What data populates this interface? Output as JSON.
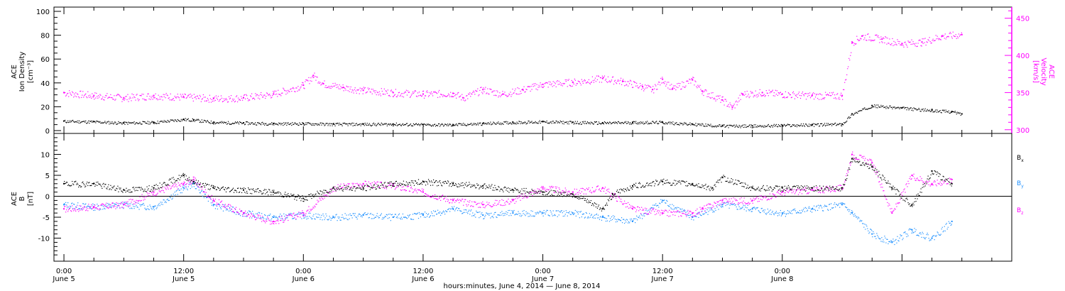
{
  "colors": {
    "axis": "#000000",
    "density": "#000000",
    "velocity": "#ff00ff",
    "bx": "#000000",
    "by": "#1e90ff",
    "bz": "#ff00ff"
  },
  "chart_data": [
    {
      "type": "scatter",
      "panel": "top",
      "ylabel_left": [
        "ACE",
        "Ion Density",
        "[cm⁻³]"
      ],
      "ylabel_right": [
        "ACE",
        "Velocity",
        "[km/s]"
      ],
      "ylim_left": [
        0,
        100
      ],
      "yticks_left": [
        0,
        20,
        40,
        60,
        80,
        100
      ],
      "ylim_right": [
        295,
        465
      ],
      "yticks_right": [
        300,
        350,
        400,
        450
      ],
      "xlim_hours": [
        -1,
        95
      ],
      "series": [
        {
          "axis": "left",
          "color_key": "density",
          "points": [
            [
              0,
              8
            ],
            [
              3,
              7.5
            ],
            [
              6,
              6.5
            ],
            [
              9,
              7
            ],
            [
              12,
              9.5
            ],
            [
              13,
              9
            ],
            [
              15,
              7
            ],
            [
              18,
              6.5
            ],
            [
              21,
              6
            ],
            [
              24,
              6
            ],
            [
              27,
              5.5
            ],
            [
              30,
              5.5
            ],
            [
              33,
              5.5
            ],
            [
              36,
              5
            ],
            [
              39,
              5
            ],
            [
              42,
              6
            ],
            [
              45,
              7
            ],
            [
              48,
              7.5
            ],
            [
              51,
              7
            ],
            [
              54,
              6.5
            ],
            [
              57,
              7
            ],
            [
              60,
              7
            ],
            [
              63,
              5.5
            ],
            [
              66,
              4
            ],
            [
              69,
              4
            ],
            [
              72,
              4.5
            ],
            [
              75,
              5
            ],
            [
              78,
              5.5
            ],
            [
              79,
              14
            ],
            [
              81,
              21
            ],
            [
              84,
              19
            ],
            [
              87,
              17
            ],
            [
              89,
              16
            ],
            [
              90,
              14
            ]
          ]
        },
        {
          "axis": "right",
          "color_key": "velocity",
          "points": [
            [
              0,
              350
            ],
            [
              3,
              346
            ],
            [
              6,
              343
            ],
            [
              9,
              346
            ],
            [
              12,
              344
            ],
            [
              15,
              342
            ],
            [
              18,
              343
            ],
            [
              21,
              348
            ],
            [
              24,
              360
            ],
            [
              25,
              373
            ],
            [
              26,
              362
            ],
            [
              28,
              357
            ],
            [
              30,
              353
            ],
            [
              33,
              350
            ],
            [
              36,
              348
            ],
            [
              39,
              349
            ],
            [
              40,
              343
            ],
            [
              42,
              354
            ],
            [
              44,
              348
            ],
            [
              46,
              354
            ],
            [
              48,
              361
            ],
            [
              51,
              364
            ],
            [
              54,
              369
            ],
            [
              56,
              365
            ],
            [
              58,
              358
            ],
            [
              59,
              354
            ],
            [
              60,
              368
            ],
            [
              61,
              355
            ],
            [
              63,
              367
            ],
            [
              64,
              352
            ],
            [
              66,
              340
            ],
            [
              67,
              330
            ],
            [
              68,
              348
            ],
            [
              70,
              350
            ],
            [
              72,
              348
            ],
            [
              75,
              346
            ],
            [
              78,
              346
            ],
            [
              79,
              418
            ],
            [
              80,
              426
            ],
            [
              82,
              422
            ],
            [
              84,
              416
            ],
            [
              86,
              418
            ],
            [
              88,
              426
            ],
            [
              90,
              428
            ]
          ]
        }
      ]
    },
    {
      "type": "scatter",
      "panel": "bottom",
      "ylabel_left": [
        "ACE",
        "B",
        "[nT]"
      ],
      "ylim": [
        -15.5,
        15
      ],
      "yticks": [
        -10,
        -5,
        0,
        5,
        10
      ],
      "xlim_hours": [
        -1,
        95
      ],
      "legend_position": "right",
      "series": [
        {
          "name": "Bx",
          "color_key": "bx",
          "points": [
            [
              0,
              3
            ],
            [
              3,
              3
            ],
            [
              6,
              1.5
            ],
            [
              9,
              2
            ],
            [
              12,
              5
            ],
            [
              13,
              3.5
            ],
            [
              15,
              2
            ],
            [
              18,
              1.5
            ],
            [
              21,
              1
            ],
            [
              24,
              -0.5
            ],
            [
              27,
              2
            ],
            [
              30,
              2
            ],
            [
              33,
              3
            ],
            [
              36,
              3.5
            ],
            [
              39,
              3
            ],
            [
              42,
              2.5
            ],
            [
              45,
              1.5
            ],
            [
              48,
              1
            ],
            [
              51,
              0.5
            ],
            [
              54,
              -3
            ],
            [
              55,
              0.5
            ],
            [
              57,
              2.5
            ],
            [
              60,
              3.5
            ],
            [
              63,
              3
            ],
            [
              65,
              2
            ],
            [
              66,
              4.5
            ],
            [
              69,
              2
            ],
            [
              72,
              2
            ],
            [
              75,
              2
            ],
            [
              78,
              2
            ],
            [
              79,
              9
            ],
            [
              81,
              7
            ],
            [
              83,
              2
            ],
            [
              85,
              -2
            ],
            [
              87,
              6
            ],
            [
              89,
              3
            ]
          ]
        },
        {
          "name": "By",
          "color_key": "by",
          "points": [
            [
              0,
              -2
            ],
            [
              3,
              -2.5
            ],
            [
              6,
              -2
            ],
            [
              9,
              -2.5
            ],
            [
              12,
              2
            ],
            [
              13,
              3
            ],
            [
              15,
              -2
            ],
            [
              18,
              -4
            ],
            [
              21,
              -5
            ],
            [
              24,
              -4.5
            ],
            [
              27,
              -5
            ],
            [
              30,
              -4.5
            ],
            [
              33,
              -5
            ],
            [
              36,
              -4.5
            ],
            [
              39,
              -3
            ],
            [
              42,
              -4.5
            ],
            [
              45,
              -4
            ],
            [
              48,
              -4
            ],
            [
              51,
              -4
            ],
            [
              54,
              -5
            ],
            [
              57,
              -6
            ],
            [
              60,
              -1
            ],
            [
              63,
              -5
            ],
            [
              66,
              -2
            ],
            [
              69,
              -3
            ],
            [
              72,
              -4
            ],
            [
              75,
              -3
            ],
            [
              78,
              -2
            ],
            [
              79,
              -4
            ],
            [
              81,
              -9
            ],
            [
              83,
              -11
            ],
            [
              85,
              -8
            ],
            [
              87,
              -10
            ],
            [
              89,
              -6
            ]
          ]
        },
        {
          "name": "Bz",
          "color_key": "bz",
          "points": [
            [
              0,
              -3
            ],
            [
              3,
              -2.5
            ],
            [
              6,
              -2
            ],
            [
              9,
              1
            ],
            [
              12,
              3
            ],
            [
              13,
              4
            ],
            [
              15,
              -1
            ],
            [
              18,
              -4
            ],
            [
              21,
              -6
            ],
            [
              24,
              -4
            ],
            [
              27,
              2
            ],
            [
              30,
              3
            ],
            [
              33,
              2.5
            ],
            [
              36,
              1
            ],
            [
              39,
              -1
            ],
            [
              42,
              -2
            ],
            [
              45,
              -1
            ],
            [
              48,
              2
            ],
            [
              51,
              1
            ],
            [
              54,
              2
            ],
            [
              57,
              -3
            ],
            [
              60,
              -4
            ],
            [
              63,
              -4
            ],
            [
              64,
              -3
            ],
            [
              66,
              -1
            ],
            [
              69,
              -1
            ],
            [
              72,
              1
            ],
            [
              75,
              1.5
            ],
            [
              78,
              2
            ],
            [
              79,
              10
            ],
            [
              81,
              8
            ],
            [
              83,
              -4
            ],
            [
              85,
              5
            ],
            [
              87,
              3
            ],
            [
              89,
              4
            ]
          ]
        }
      ],
      "legend": [
        "B",
        "B",
        "B"
      ],
      "legend_subs": [
        "x",
        "y",
        "z"
      ]
    }
  ],
  "xaxis": {
    "ticks": [
      {
        "hour": 0,
        "time": "0:00",
        "date": "June 5"
      },
      {
        "hour": 12,
        "time": "12:00",
        "date": "June 5"
      },
      {
        "hour": 24,
        "time": "0:00",
        "date": "June 6"
      },
      {
        "hour": 36,
        "time": "12:00",
        "date": "June 6"
      },
      {
        "hour": 48,
        "time": "0:00",
        "date": "June 7"
      },
      {
        "hour": 60,
        "time": "12:00",
        "date": "June 7"
      },
      {
        "hour": 72,
        "time": "0:00",
        "date": "June 8"
      }
    ],
    "xlabel": "hours:minutes, June  4, 2014 — June  8, 2014"
  }
}
